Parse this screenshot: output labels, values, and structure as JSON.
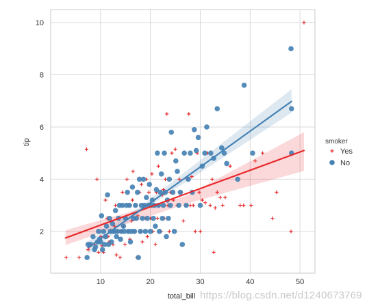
{
  "chart_data": {
    "type": "scatter",
    "title": "",
    "xlabel": "total_bill",
    "ylabel": "tip",
    "xlim": [
      0,
      53
    ],
    "ylim": [
      0.4,
      10.5
    ],
    "xticks": [
      10,
      20,
      30,
      40,
      50
    ],
    "yticks": [
      2,
      4,
      6,
      8,
      10
    ],
    "grid": true,
    "background": "#ffffff",
    "gridColor": "#d9d9d9",
    "legend": {
      "title": "smoker",
      "position": "right"
    },
    "series": [
      {
        "name": "Yes",
        "color": "#e8282b",
        "marker": "plus",
        "regression": {
          "x": [
            3,
            50.8
          ],
          "y": [
            1.75,
            5.1
          ]
        },
        "ci_band": {
          "x": [
            3,
            27,
            50.8
          ],
          "lower": [
            1.48,
            3.05,
            4.32
          ],
          "upper": [
            2.05,
            3.35,
            5.8
          ]
        },
        "points": [
          [
            3.1,
            1.0
          ],
          [
            5.7,
            1.0
          ],
          [
            7.2,
            5.15
          ],
          [
            7.5,
            1.3
          ],
          [
            7.7,
            1.4
          ],
          [
            8.8,
            1.5
          ],
          [
            9.3,
            4.0
          ],
          [
            9.6,
            1.2
          ],
          [
            9.8,
            1.6
          ],
          [
            10.1,
            1.8
          ],
          [
            10.3,
            1.45
          ],
          [
            10.6,
            1.2
          ],
          [
            11.0,
            3.2
          ],
          [
            11.3,
            2.5
          ],
          [
            11.5,
            1.8
          ],
          [
            11.7,
            1.6
          ],
          [
            12.0,
            2.0
          ],
          [
            12.2,
            2.4
          ],
          [
            12.5,
            1.5
          ],
          [
            12.8,
            2.2
          ],
          [
            13.0,
            3.0
          ],
          [
            13.2,
            1.1
          ],
          [
            13.4,
            2.0
          ],
          [
            13.6,
            2.5
          ],
          [
            13.9,
            1.0
          ],
          [
            14.1,
            2.0
          ],
          [
            14.4,
            3.5
          ],
          [
            14.6,
            2.2
          ],
          [
            14.9,
            1.5
          ],
          [
            15.1,
            2.5
          ],
          [
            15.3,
            4.0
          ],
          [
            15.5,
            2.0
          ],
          [
            15.7,
            3.0
          ],
          [
            15.9,
            1.7
          ],
          [
            16.2,
            2.4
          ],
          [
            16.4,
            3.2
          ],
          [
            16.5,
            4.3
          ],
          [
            16.8,
            2.0
          ],
          [
            17.1,
            3.0
          ],
          [
            17.3,
            1.0
          ],
          [
            17.5,
            2.6
          ],
          [
            17.8,
            3.5
          ],
          [
            18.0,
            2.0
          ],
          [
            18.2,
            3.8
          ],
          [
            18.4,
            1.6
          ],
          [
            18.7,
            3.0
          ],
          [
            19.0,
            2.5
          ],
          [
            19.2,
            4.0
          ],
          [
            19.4,
            1.8
          ],
          [
            19.7,
            3.5
          ],
          [
            20.0,
            2.5
          ],
          [
            20.3,
            4.2
          ],
          [
            20.5,
            2.0
          ],
          [
            20.7,
            3.0
          ],
          [
            21.0,
            1.5
          ],
          [
            21.2,
            3.5
          ],
          [
            21.4,
            2.5
          ],
          [
            21.6,
            4.5
          ],
          [
            21.9,
            3.0
          ],
          [
            22.1,
            2.0
          ],
          [
            22.4,
            3.4
          ],
          [
            22.6,
            3.6
          ],
          [
            22.8,
            2.5
          ],
          [
            23.0,
            4.0
          ],
          [
            23.3,
            6.5
          ],
          [
            23.5,
            3.0
          ],
          [
            23.8,
            2.0
          ],
          [
            24.0,
            3.5
          ],
          [
            24.3,
            5.0
          ],
          [
            24.6,
            3.2
          ],
          [
            25.0,
            5.15
          ],
          [
            25.4,
            3.0
          ],
          [
            25.8,
            4.0
          ],
          [
            26.2,
            3.5
          ],
          [
            26.6,
            2.4
          ],
          [
            27.0,
            3.0
          ],
          [
            27.4,
            4.0
          ],
          [
            27.7,
            6.5
          ],
          [
            28.0,
            3.0
          ],
          [
            28.3,
            4.1
          ],
          [
            28.6,
            3.0
          ],
          [
            29.0,
            2.0
          ],
          [
            29.4,
            5.0
          ],
          [
            29.8,
            3.5
          ],
          [
            30.0,
            2.0
          ],
          [
            30.4,
            3.2
          ],
          [
            31.0,
            3.1
          ],
          [
            31.5,
            5.0
          ],
          [
            32.0,
            3.0
          ],
          [
            32.4,
            4.0
          ],
          [
            32.7,
            1.2
          ],
          [
            33.0,
            2.9
          ],
          [
            33.4,
            3.5
          ],
          [
            34.0,
            3.3
          ],
          [
            34.5,
            3.0
          ],
          [
            35.0,
            3.3
          ],
          [
            36.0,
            4.5
          ],
          [
            38.0,
            3.0
          ],
          [
            38.7,
            3.0
          ],
          [
            40.2,
            3.0
          ],
          [
            41.0,
            4.7
          ],
          [
            42.5,
            5.0
          ],
          [
            44.5,
            2.5
          ],
          [
            45.3,
            3.5
          ],
          [
            48.2,
            2.0
          ],
          [
            50.8,
            10.0
          ]
        ]
      },
      {
        "name": "No",
        "color": "#4682b4",
        "marker": "circle",
        "regression": {
          "x": [
            7.5,
            48.3
          ],
          "y": [
            1.38,
            6.98
          ]
        },
        "ci_band": {
          "x": [
            7.5,
            18,
            48.3
          ],
          "lower": [
            1.12,
            2.75,
            6.55
          ],
          "upper": [
            1.62,
            2.95,
            7.45
          ]
        },
        "points": [
          [
            7.3,
            1.0
          ],
          [
            7.5,
            1.5
          ],
          [
            8.0,
            1.5
          ],
          [
            8.5,
            1.8
          ],
          [
            8.8,
            1.3
          ],
          [
            9.0,
            1.4
          ],
          [
            9.4,
            1.6
          ],
          [
            9.6,
            2.0
          ],
          [
            9.8,
            1.7
          ],
          [
            10.0,
            1.6
          ],
          [
            10.2,
            2.6
          ],
          [
            10.4,
            1.3
          ],
          [
            10.6,
            2.0
          ],
          [
            10.8,
            1.5
          ],
          [
            11.0,
            1.8
          ],
          [
            11.2,
            2.2
          ],
          [
            11.4,
            3.4
          ],
          [
            11.6,
            1.5
          ],
          [
            11.8,
            2.5
          ],
          [
            12.0,
            2.0
          ],
          [
            12.2,
            1.6
          ],
          [
            12.4,
            2.3
          ],
          [
            12.6,
            2.0
          ],
          [
            12.8,
            2.0
          ],
          [
            13.0,
            2.8
          ],
          [
            13.2,
            1.8
          ],
          [
            13.4,
            2.0
          ],
          [
            13.6,
            2.5
          ],
          [
            13.8,
            3.0
          ],
          [
            14.0,
            1.7
          ],
          [
            14.2,
            2.0
          ],
          [
            14.4,
            3.0
          ],
          [
            14.6,
            2.2
          ],
          [
            14.8,
            2.0
          ],
          [
            15.0,
            2.5
          ],
          [
            15.2,
            3.0
          ],
          [
            15.4,
            3.5
          ],
          [
            15.6,
            2.0
          ],
          [
            15.8,
            3.0
          ],
          [
            16.0,
            1.6
          ],
          [
            16.2,
            2.0
          ],
          [
            16.4,
            3.7
          ],
          [
            16.6,
            2.5
          ],
          [
            16.8,
            2.0
          ],
          [
            17.0,
            3.0
          ],
          [
            17.2,
            2.5
          ],
          [
            17.4,
            3.5
          ],
          [
            17.6,
            1.0
          ],
          [
            17.8,
            4.0
          ],
          [
            18.0,
            2.0
          ],
          [
            18.2,
            3.0
          ],
          [
            18.4,
            2.5
          ],
          [
            18.6,
            4.0
          ],
          [
            18.8,
            3.0
          ],
          [
            19.0,
            2.0
          ],
          [
            19.2,
            3.3
          ],
          [
            19.4,
            2.5
          ],
          [
            19.6,
            3.0
          ],
          [
            19.8,
            3.8
          ],
          [
            20.0,
            2.0
          ],
          [
            20.2,
            3.0
          ],
          [
            20.4,
            3.2
          ],
          [
            20.6,
            2.5
          ],
          [
            20.8,
            3.0
          ],
          [
            21.0,
            2.2
          ],
          [
            21.2,
            3.6
          ],
          [
            21.4,
            5.0
          ],
          [
            21.6,
            3.0
          ],
          [
            21.8,
            2.0
          ],
          [
            22.0,
            3.5
          ],
          [
            22.2,
            4.2
          ],
          [
            22.4,
            2.5
          ],
          [
            22.6,
            3.0
          ],
          [
            22.8,
            5.0
          ],
          [
            23.0,
            3.5
          ],
          [
            23.2,
            1.8
          ],
          [
            23.4,
            3.2
          ],
          [
            23.6,
            2.5
          ],
          [
            23.8,
            4.0
          ],
          [
            24.0,
            3.0
          ],
          [
            24.2,
            5.8
          ],
          [
            24.5,
            3.5
          ],
          [
            24.8,
            2.0
          ],
          [
            25.1,
            4.7
          ],
          [
            25.4,
            4.3
          ],
          [
            25.7,
            3.0
          ],
          [
            26.0,
            3.5
          ],
          [
            26.4,
            1.5
          ],
          [
            26.8,
            5.0
          ],
          [
            27.2,
            3.0
          ],
          [
            27.6,
            4.0
          ],
          [
            28.0,
            5.0
          ],
          [
            28.4,
            3.5
          ],
          [
            28.8,
            5.9
          ],
          [
            29.2,
            5.1
          ],
          [
            29.6,
            5.6
          ],
          [
            30.0,
            3.0
          ],
          [
            30.4,
            4.5
          ],
          [
            30.9,
            5.0
          ],
          [
            31.3,
            6.0
          ],
          [
            32.1,
            5.0
          ],
          [
            32.7,
            4.8
          ],
          [
            33.4,
            6.7
          ],
          [
            34.3,
            5.2
          ],
          [
            34.8,
            5.0
          ],
          [
            35.3,
            4.6
          ],
          [
            37.5,
            4.0
          ],
          [
            38.8,
            7.6
          ],
          [
            40.5,
            5.0
          ],
          [
            48.2,
            9.0
          ],
          [
            48.3,
            6.7
          ],
          [
            48.3,
            5.0
          ]
        ]
      }
    ]
  },
  "watermark": "https://blog.csdn.net/d1240673769"
}
